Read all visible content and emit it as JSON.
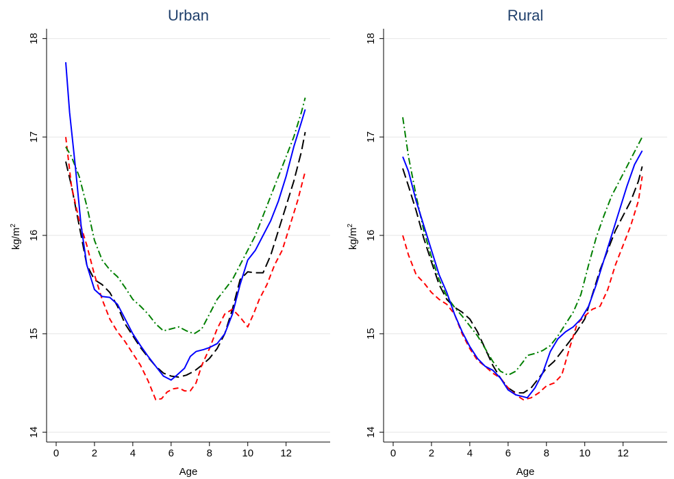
{
  "chart_data": [
    {
      "type": "line",
      "title": "Urban",
      "xlabel": "Age",
      "ylabel": "kg/m",
      "ylabel_sup": "2",
      "xlim": [
        -0.5,
        14.3
      ],
      "ylim": [
        13.9,
        18.1
      ],
      "xticks": [
        0,
        2,
        4,
        6,
        8,
        10,
        12
      ],
      "yticks": [
        14,
        15,
        16,
        17,
        18
      ],
      "grid": true,
      "series": [
        {
          "color": "#0000ff",
          "dash": "solid",
          "x": [
            0.5,
            0.7,
            1.0,
            1.3,
            1.6,
            2.0,
            2.4,
            2.8,
            3.2,
            3.6,
            4.0,
            4.4,
            4.8,
            5.2,
            5.6,
            6.0,
            6.3,
            6.7,
            7.0,
            7.3,
            7.7,
            8.0,
            8.4,
            8.8,
            9.2,
            9.6,
            10.0,
            10.4,
            10.8,
            11.2,
            11.6,
            12.0,
            12.4,
            12.8,
            13.0
          ],
          "y": [
            17.76,
            17.25,
            16.7,
            16.1,
            15.7,
            15.45,
            15.38,
            15.37,
            15.3,
            15.15,
            15.0,
            14.88,
            14.77,
            14.67,
            14.57,
            14.53,
            14.58,
            14.65,
            14.77,
            14.82,
            14.84,
            14.86,
            14.9,
            15.0,
            15.2,
            15.5,
            15.75,
            15.85,
            16.0,
            16.15,
            16.35,
            16.6,
            16.9,
            17.15,
            17.28
          ]
        },
        {
          "color": "#000000",
          "dash": "long",
          "x": [
            0.5,
            0.8,
            1.2,
            1.6,
            2.0,
            2.4,
            2.8,
            3.2,
            3.6,
            4.0,
            4.4,
            4.8,
            5.2,
            5.6,
            6.0,
            6.4,
            6.8,
            7.2,
            7.6,
            8.0,
            8.4,
            8.8,
            9.2,
            9.6,
            10.0,
            10.4,
            10.8,
            11.2,
            11.6,
            12.0,
            12.4,
            12.8,
            13.0
          ],
          "y": [
            16.75,
            16.5,
            16.1,
            15.7,
            15.55,
            15.5,
            15.42,
            15.28,
            15.1,
            14.98,
            14.86,
            14.76,
            14.67,
            14.6,
            14.57,
            14.56,
            14.58,
            14.62,
            14.68,
            14.75,
            14.85,
            15.0,
            15.25,
            15.55,
            15.63,
            15.62,
            15.62,
            15.8,
            16.05,
            16.3,
            16.55,
            16.85,
            17.05
          ]
        },
        {
          "color": "#ff0000",
          "dash": "short",
          "x": [
            0.5,
            0.8,
            1.2,
            1.6,
            2.0,
            2.4,
            2.8,
            3.2,
            3.6,
            4.0,
            4.4,
            4.8,
            5.2,
            5.5,
            5.8,
            6.1,
            6.4,
            6.7,
            7.0,
            7.3,
            7.6,
            8.0,
            8.4,
            8.8,
            9.2,
            9.6,
            10.0,
            10.3,
            10.6,
            11.0,
            11.4,
            11.8,
            12.2,
            12.6,
            13.0
          ],
          "y": [
            17.0,
            16.5,
            16.15,
            15.9,
            15.6,
            15.35,
            15.15,
            15.02,
            14.92,
            14.8,
            14.68,
            14.52,
            14.33,
            14.34,
            14.41,
            14.44,
            14.45,
            14.42,
            14.42,
            14.5,
            14.68,
            14.85,
            15.05,
            15.2,
            15.25,
            15.17,
            15.07,
            15.2,
            15.35,
            15.5,
            15.7,
            15.85,
            16.1,
            16.35,
            16.65
          ]
        },
        {
          "color": "#007f00",
          "dash": "dashdot",
          "x": [
            0.5,
            0.8,
            1.2,
            1.6,
            2.0,
            2.4,
            2.8,
            3.2,
            3.6,
            4.0,
            4.4,
            4.8,
            5.2,
            5.6,
            6.0,
            6.4,
            6.8,
            7.2,
            7.6,
            8.0,
            8.4,
            8.8,
            9.2,
            9.6,
            10.0,
            10.4,
            10.8,
            11.2,
            11.6,
            12.0,
            12.4,
            12.8,
            13.0
          ],
          "y": [
            16.9,
            16.8,
            16.6,
            16.3,
            15.95,
            15.75,
            15.65,
            15.58,
            15.47,
            15.35,
            15.28,
            15.2,
            15.1,
            15.03,
            15.05,
            15.07,
            15.03,
            15.0,
            15.05,
            15.2,
            15.35,
            15.45,
            15.55,
            15.7,
            15.85,
            16.0,
            16.2,
            16.4,
            16.6,
            16.8,
            17.0,
            17.25,
            17.4
          ]
        }
      ]
    },
    {
      "type": "line",
      "title": "Rural",
      "xlabel": "Age",
      "ylabel": "kg/m",
      "ylabel_sup": "2",
      "xlim": [
        -0.5,
        14.3
      ],
      "ylim": [
        13.9,
        18.1
      ],
      "xticks": [
        0,
        2,
        4,
        6,
        8,
        10,
        12
      ],
      "yticks": [
        14,
        15,
        16,
        17,
        18
      ],
      "grid": true,
      "series": [
        {
          "color": "#0000ff",
          "dash": "solid",
          "x": [
            0.5,
            0.8,
            1.2,
            1.6,
            2.0,
            2.4,
            2.8,
            3.2,
            3.6,
            4.0,
            4.4,
            4.8,
            5.2,
            5.6,
            6.0,
            6.4,
            6.8,
            7.0,
            7.4,
            7.8,
            8.2,
            8.6,
            9.0,
            9.4,
            9.8,
            10.2,
            10.6,
            11.0,
            11.4,
            11.8,
            12.2,
            12.6,
            13.0
          ],
          "y": [
            16.8,
            16.65,
            16.35,
            16.1,
            15.85,
            15.6,
            15.42,
            15.2,
            15.02,
            14.87,
            14.75,
            14.67,
            14.63,
            14.55,
            14.43,
            14.38,
            14.36,
            14.35,
            14.45,
            14.6,
            14.82,
            14.95,
            15.02,
            15.07,
            15.15,
            15.28,
            15.5,
            15.75,
            16.0,
            16.25,
            16.5,
            16.72,
            16.86
          ]
        },
        {
          "color": "#000000",
          "dash": "long",
          "x": [
            0.5,
            0.8,
            1.2,
            1.6,
            2.0,
            2.4,
            2.8,
            3.2,
            3.6,
            4.0,
            4.4,
            4.8,
            5.2,
            5.6,
            6.0,
            6.4,
            6.8,
            7.2,
            7.6,
            8.0,
            8.4,
            8.8,
            9.2,
            9.6,
            10.0,
            10.4,
            10.8,
            11.2,
            11.6,
            12.0,
            12.4,
            12.8,
            13.0
          ],
          "y": [
            16.68,
            16.5,
            16.25,
            15.97,
            15.73,
            15.5,
            15.35,
            15.27,
            15.22,
            15.15,
            15.02,
            14.85,
            14.68,
            14.55,
            14.45,
            14.4,
            14.4,
            14.45,
            14.55,
            14.65,
            14.72,
            14.82,
            14.92,
            15.03,
            15.15,
            15.4,
            15.65,
            15.85,
            16.05,
            16.2,
            16.35,
            16.55,
            16.7
          ]
        },
        {
          "color": "#ff0000",
          "dash": "short",
          "x": [
            0.5,
            0.8,
            1.2,
            1.6,
            2.0,
            2.4,
            2.8,
            3.2,
            3.6,
            4.0,
            4.4,
            4.8,
            5.2,
            5.6,
            6.0,
            6.4,
            6.8,
            7.2,
            7.6,
            8.0,
            8.4,
            8.8,
            9.2,
            9.6,
            10.0,
            10.4,
            10.8,
            11.2,
            11.6,
            12.0,
            12.4,
            12.8,
            13.0
          ],
          "y": [
            16.0,
            15.8,
            15.6,
            15.52,
            15.42,
            15.35,
            15.3,
            15.2,
            15.0,
            14.85,
            14.73,
            14.67,
            14.6,
            14.55,
            14.45,
            14.38,
            14.33,
            14.35,
            14.4,
            14.47,
            14.5,
            14.58,
            14.85,
            15.1,
            15.18,
            15.25,
            15.28,
            15.45,
            15.7,
            15.9,
            16.1,
            16.35,
            16.6
          ]
        },
        {
          "color": "#007f00",
          "dash": "dashdot",
          "x": [
            0.5,
            0.8,
            1.2,
            1.6,
            2.0,
            2.4,
            2.8,
            3.2,
            3.6,
            4.0,
            4.4,
            4.8,
            5.2,
            5.6,
            6.0,
            6.4,
            6.8,
            7.0,
            7.4,
            7.8,
            8.2,
            8.6,
            9.0,
            9.4,
            9.8,
            10.2,
            10.6,
            11.0,
            11.4,
            11.8,
            12.2,
            12.6,
            13.0
          ],
          "y": [
            17.2,
            16.8,
            16.4,
            16.05,
            15.78,
            15.55,
            15.38,
            15.27,
            15.18,
            15.08,
            14.98,
            14.85,
            14.72,
            14.62,
            14.58,
            14.62,
            14.72,
            14.78,
            14.8,
            14.83,
            14.88,
            14.98,
            15.1,
            15.22,
            15.4,
            15.7,
            15.98,
            16.2,
            16.4,
            16.55,
            16.7,
            16.85,
            17.0
          ]
        }
      ]
    }
  ]
}
